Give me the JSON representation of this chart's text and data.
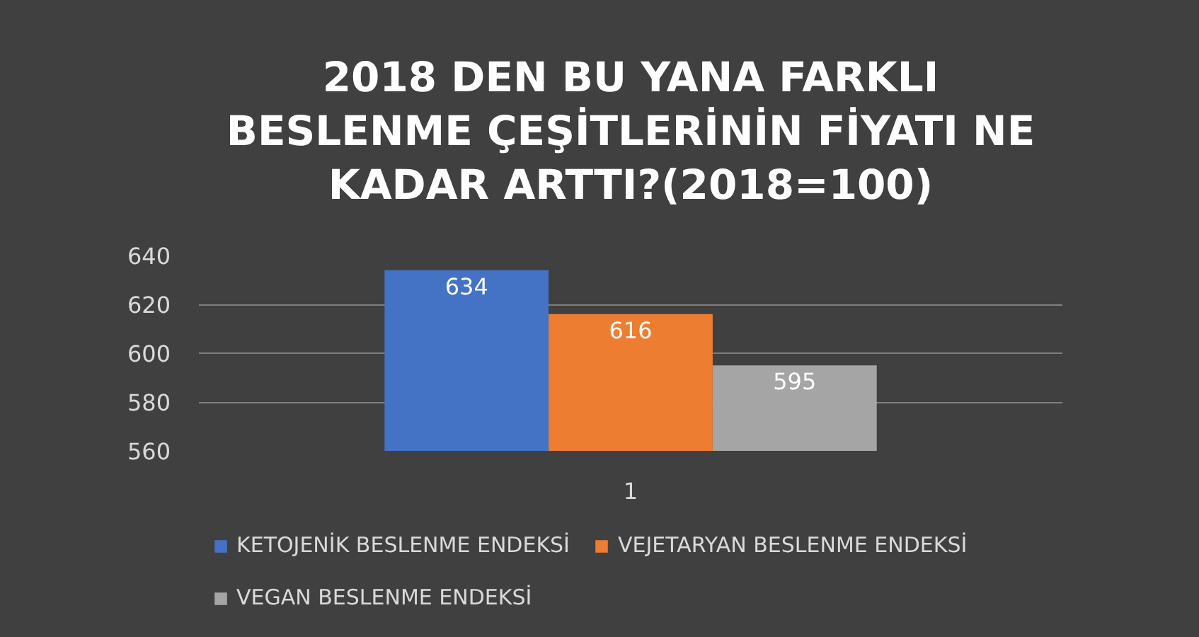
{
  "chart_data": {
    "type": "bar",
    "title": "2018 DEN BU YANA FARKLI BESLENME ÇEŞİTLERİNİN FİYATI NE KADAR ARTTI?(2018=100)",
    "categories": [
      "1"
    ],
    "series": [
      {
        "name": "KETOJENİK BESLENME ENDEKSİ",
        "color": "#4472c4",
        "values": [
          634
        ]
      },
      {
        "name": "VEJETARYAN BESLENME ENDEKSİ",
        "color": "#ed7d31",
        "values": [
          616
        ]
      },
      {
        "name": "VEGAN BESLENME ENDEKSİ",
        "color": "#a5a5a5",
        "values": [
          595
        ]
      }
    ],
    "ylim": [
      560,
      640
    ],
    "yticks": [
      560,
      580,
      600,
      620,
      640
    ],
    "grid": "y",
    "legend": "bottom",
    "data_labels": true
  }
}
